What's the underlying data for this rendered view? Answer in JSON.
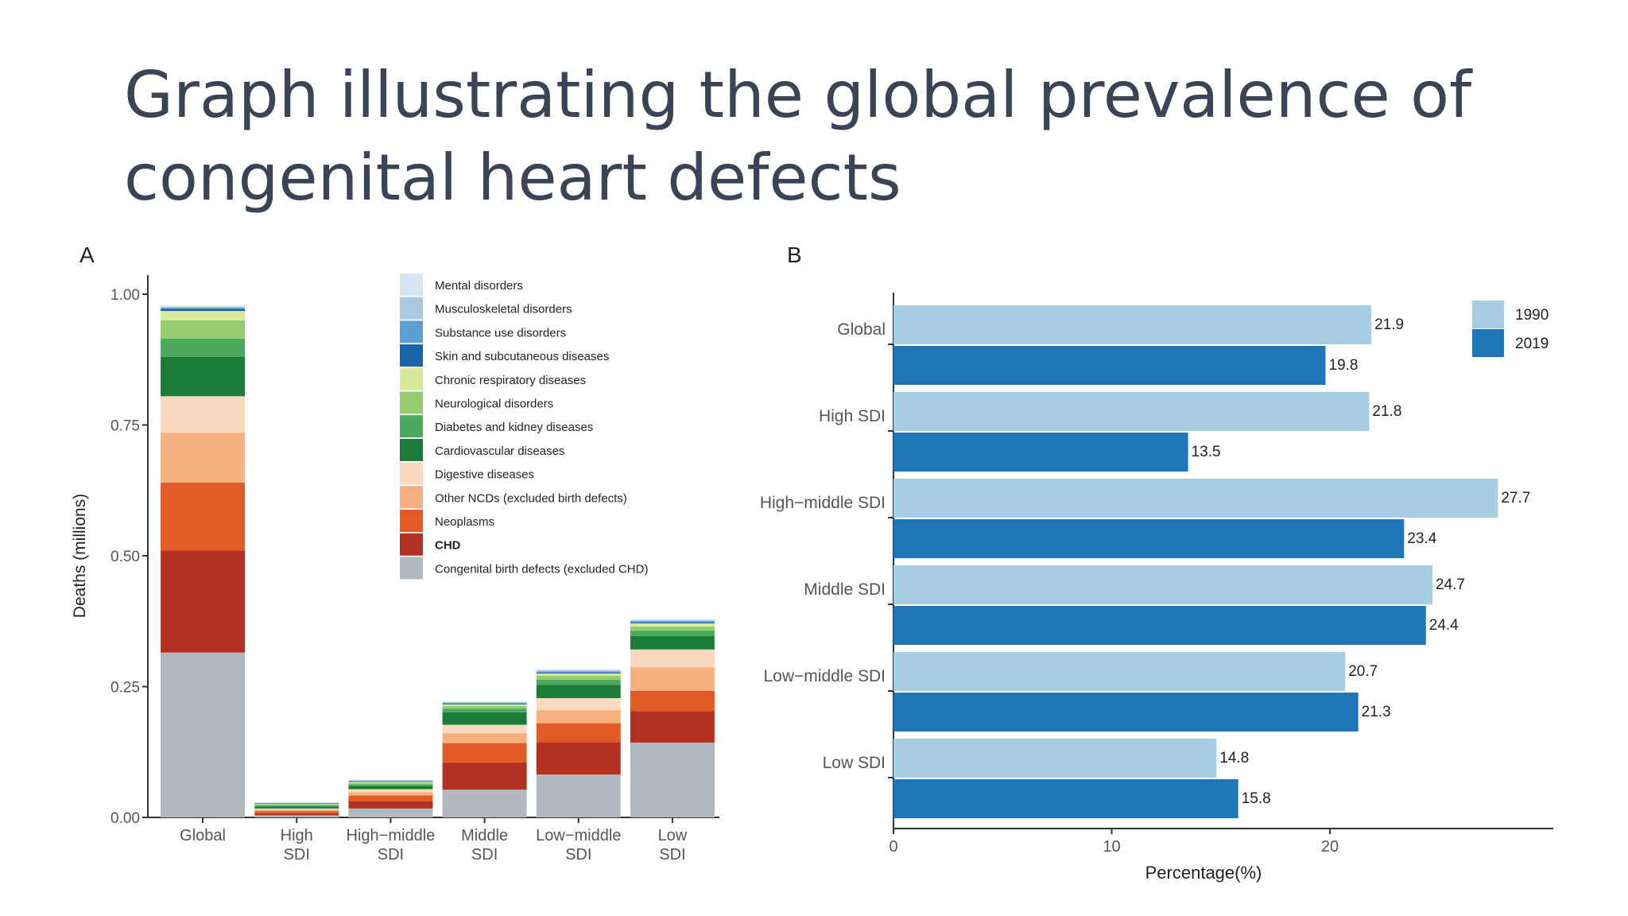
{
  "title_lines": [
    "Graph illustrating the global prevalence of",
    "congenital heart defects"
  ],
  "chart_data": [
    {
      "panel_label": "A",
      "type": "bar",
      "stacked": true,
      "ylabel": "Deaths (millions)",
      "xlabel": "",
      "ylim": [
        0,
        1.0
      ],
      "yticks": [
        "0.00",
        "0.25",
        "0.50",
        "0.75",
        "1.00"
      ],
      "categories": [
        [
          "Global"
        ],
        [
          "High",
          "SDI"
        ],
        [
          "High−middle",
          "SDI"
        ],
        [
          "Middle",
          "SDI"
        ],
        [
          "Low−middle",
          "SDI"
        ],
        [
          "Low",
          "SDI"
        ]
      ],
      "legend_position": "top-right",
      "series": [
        {
          "name": "Congenital birth defects (excluded CHD)",
          "color": "#b1b8bf",
          "values": [
            0.315,
            0.004,
            0.017,
            0.053,
            0.082,
            0.143
          ]
        },
        {
          "name": "CHD",
          "bold": true,
          "color": "#b23121",
          "values": [
            0.195,
            0.004,
            0.014,
            0.052,
            0.062,
            0.06
          ]
        },
        {
          "name": "Neoplasms",
          "color": "#e35b24",
          "values": [
            0.13,
            0.004,
            0.011,
            0.037,
            0.036,
            0.039
          ]
        },
        {
          "name": "Other NCDs (excluded birth defects)",
          "color": "#f6b17e",
          "values": [
            0.095,
            0.003,
            0.006,
            0.019,
            0.025,
            0.045
          ]
        },
        {
          "name": "Digestive diseases",
          "color": "#fad9bf",
          "values": [
            0.07,
            0.002,
            0.006,
            0.016,
            0.023,
            0.034
          ]
        },
        {
          "name": "Cardiovascular diseases",
          "color": "#1d7b3a",
          "values": [
            0.075,
            0.004,
            0.006,
            0.024,
            0.025,
            0.026
          ]
        },
        {
          "name": "Diabetes and kidney diseases",
          "color": "#4caa5c",
          "values": [
            0.035,
            0.002,
            0.003,
            0.007,
            0.01,
            0.01
          ]
        },
        {
          "name": "Neurological disorders",
          "color": "#94cc72",
          "values": [
            0.035,
            0.002,
            0.003,
            0.005,
            0.008,
            0.008
          ]
        },
        {
          "name": "Chronic respiratory diseases",
          "color": "#d6ea97",
          "values": [
            0.018,
            0.001,
            0.002,
            0.003,
            0.004,
            0.006
          ]
        },
        {
          "name": "Skin and subcutaneous diseases",
          "color": "#1964ab",
          "values": [
            0.004,
            0.0008,
            0.001,
            0.0015,
            0.002,
            0.002
          ]
        },
        {
          "name": "Substance use disorders",
          "color": "#5a9fd0",
          "values": [
            0.002,
            0.0008,
            0.001,
            0.0015,
            0.002,
            0.002
          ]
        },
        {
          "name": "Musculoskeletal disorders",
          "color": "#a9c8e2",
          "values": [
            0.002,
            0.0008,
            0.001,
            0.0015,
            0.002,
            0.002
          ]
        },
        {
          "name": "Mental disorders",
          "color": "#d3e4f2",
          "values": [
            0.002,
            0.0008,
            0.001,
            0.0015,
            0.002,
            0.002
          ]
        }
      ]
    },
    {
      "panel_label": "B",
      "type": "bar",
      "orientation": "horizontal",
      "xlabel": "Percentage(%)",
      "ylabel": "",
      "xlim": [
        0,
        30
      ],
      "xticks": [
        "0",
        "10",
        "20"
      ],
      "categories": [
        "Global",
        "High SDI",
        "High−middle SDI",
        "Middle SDI",
        "Low−middle SDI",
        "Low SDI"
      ],
      "legend_position": "top-right",
      "series": [
        {
          "name": "1990",
          "color": "#a6cde4",
          "values": [
            21.9,
            21.8,
            27.7,
            24.7,
            20.7,
            14.8
          ],
          "labels": [
            "21.9",
            "21.8",
            "27.7",
            "24.7",
            "20.7",
            "14.8"
          ]
        },
        {
          "name": "2019",
          "color": "#1f76b8",
          "values": [
            19.8,
            13.5,
            23.4,
            24.4,
            21.3,
            15.8
          ],
          "labels": [
            "19.8",
            "13.5",
            "23.4",
            "24.4",
            "21.3",
            "15.8"
          ]
        }
      ]
    }
  ]
}
